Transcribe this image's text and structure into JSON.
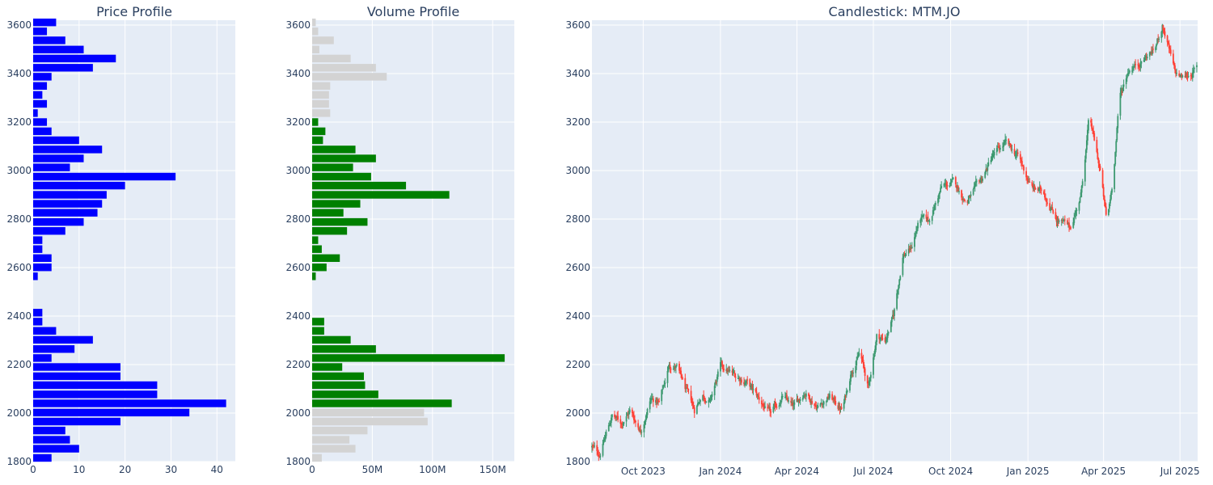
{
  "chart_data": [
    {
      "type": "bar",
      "orientation": "horizontal",
      "title": "Price Profile",
      "xlabel": "",
      "ylabel": "",
      "xlim": [
        0,
        44
      ],
      "ylim": [
        1800,
        3620
      ],
      "x_ticks": [
        "0",
        "10",
        "20",
        "30",
        "40"
      ],
      "y_ticks": [
        "1800",
        "2000",
        "2200",
        "2400",
        "2600",
        "2800",
        "3000",
        "3200",
        "3400",
        "3600"
      ],
      "bin_width": 37.4,
      "bar_color": "#0000ff",
      "bins": [
        1815,
        1853,
        1890,
        1928,
        1965,
        2002,
        2040,
        2077,
        2115,
        2152,
        2190,
        2227,
        2264,
        2302,
        2339,
        2377,
        2414,
        2452,
        2489,
        2526,
        2564,
        2601,
        2639,
        2676,
        2713,
        2751,
        2788,
        2826,
        2863,
        2900,
        2938,
        2975,
        3013,
        3050,
        3087,
        3125,
        3162,
        3200,
        3237,
        3275,
        3312,
        3349,
        3387,
        3424,
        3462,
        3499,
        3537,
        3574,
        3611
      ],
      "values": [
        4,
        10,
        8,
        7,
        19,
        34,
        42,
        27,
        27,
        19,
        19,
        4,
        9,
        13,
        5,
        2,
        2,
        0,
        0,
        0,
        1,
        4,
        4,
        2,
        2,
        7,
        11,
        14,
        15,
        16,
        20,
        31,
        8,
        11,
        15,
        10,
        4,
        3,
        1,
        3,
        2,
        3,
        4,
        13,
        18,
        11,
        7,
        3,
        5
      ]
    },
    {
      "type": "bar",
      "orientation": "horizontal",
      "title": "Volume Profile",
      "xlabel": "",
      "ylabel": "",
      "xlim": [
        0,
        168000000
      ],
      "ylim": [
        1800,
        3620
      ],
      "x_ticks": [
        "0",
        "50M",
        "100M",
        "150M"
      ],
      "y_ticks": [
        "1800",
        "2000",
        "2200",
        "2400",
        "2600",
        "2800",
        "3000",
        "3200",
        "3400",
        "3600"
      ],
      "bin_width": 37.4,
      "value_area_color": "#008000",
      "outside_color": "#d3d3d3",
      "bins": [
        1815,
        1853,
        1890,
        1928,
        1965,
        2002,
        2040,
        2077,
        2115,
        2152,
        2190,
        2227,
        2264,
        2302,
        2339,
        2377,
        2414,
        2452,
        2489,
        2526,
        2564,
        2601,
        2639,
        2676,
        2713,
        2751,
        2788,
        2826,
        2863,
        2900,
        2938,
        2975,
        3013,
        3050,
        3087,
        3125,
        3162,
        3200,
        3237,
        3275,
        3312,
        3349,
        3387,
        3424,
        3462,
        3499,
        3537,
        3574,
        3611
      ],
      "values": [
        8000000,
        36000000,
        31000000,
        46000000,
        96000000,
        93000000,
        116000000,
        55000000,
        44000000,
        43000000,
        25000000,
        160000000,
        53000000,
        32000000,
        10000000,
        10000000,
        0,
        0,
        0,
        0,
        3000000,
        12000000,
        23000000,
        8000000,
        5000000,
        29000000,
        46000000,
        26000000,
        40000000,
        114000000,
        78000000,
        49000000,
        34000000,
        53000000,
        36000000,
        9000000,
        11000000,
        5000000,
        15000000,
        14000000,
        14000000,
        15000000,
        62000000,
        53000000,
        32000000,
        6000000,
        18000000,
        5000000,
        3000000
      ],
      "in_value_area": [
        false,
        false,
        false,
        false,
        false,
        false,
        true,
        true,
        true,
        true,
        true,
        true,
        true,
        true,
        true,
        true,
        false,
        false,
        false,
        false,
        true,
        true,
        true,
        true,
        true,
        true,
        true,
        true,
        true,
        true,
        true,
        true,
        true,
        true,
        true,
        true,
        true,
        true,
        false,
        false,
        false,
        false,
        false,
        false,
        false,
        false,
        false,
        false,
        false
      ]
    },
    {
      "type": "candlestick",
      "title": "Candlestick: MTM.JO",
      "xlabel": "",
      "ylabel": "",
      "xlim": [
        "2023-08-01",
        "2025-07-22"
      ],
      "ylim": [
        1800,
        3620
      ],
      "x_ticks": [
        {
          "date": "2023-10-01",
          "label": "Oct 2023"
        },
        {
          "date": "2024-01-01",
          "label": "Jan 2024"
        },
        {
          "date": "2024-04-01",
          "label": "Apr 2024"
        },
        {
          "date": "2024-07-01",
          "label": "Jul 2024"
        },
        {
          "date": "2024-10-01",
          "label": "Oct 2024"
        },
        {
          "date": "2025-01-01",
          "label": "Jan 2025"
        },
        {
          "date": "2025-04-01",
          "label": "Apr 2025"
        },
        {
          "date": "2025-07-01",
          "label": "Jul 2025"
        }
      ],
      "y_ticks": [
        "1800",
        "2000",
        "2200",
        "2400",
        "2600",
        "2800",
        "3000",
        "3200",
        "3400",
        "3600"
      ],
      "increasing_color": "#3d9970",
      "decreasing_color": "#ff4136",
      "start_date": "2023-08-01",
      "end_date": "2025-07-21",
      "anchors": [
        [
          "2023-08-01",
          1860
        ],
        [
          "2023-08-10",
          1830
        ],
        [
          "2023-08-25",
          1990
        ],
        [
          "2023-09-05",
          1960
        ],
        [
          "2023-09-15",
          2010
        ],
        [
          "2023-09-28",
          1930
        ],
        [
          "2023-10-10",
          2060
        ],
        [
          "2023-10-20",
          2040
        ],
        [
          "2023-11-01",
          2200
        ],
        [
          "2023-11-10",
          2190
        ],
        [
          "2023-11-20",
          2100
        ],
        [
          "2023-12-01",
          2010
        ],
        [
          "2023-12-10",
          2080
        ],
        [
          "2023-12-20",
          2050
        ],
        [
          "2024-01-01",
          2190
        ],
        [
          "2024-01-15",
          2160
        ],
        [
          "2024-02-01",
          2130
        ],
        [
          "2024-02-15",
          2060
        ],
        [
          "2024-03-01",
          1990
        ],
        [
          "2024-03-15",
          2070
        ],
        [
          "2024-03-28",
          2020
        ],
        [
          "2024-04-10",
          2090
        ],
        [
          "2024-04-25",
          2030
        ],
        [
          "2024-05-10",
          2070
        ],
        [
          "2024-05-25",
          2010
        ],
        [
          "2024-06-05",
          2180
        ],
        [
          "2024-06-15",
          2250
        ],
        [
          "2024-06-25",
          2100
        ],
        [
          "2024-07-05",
          2320
        ],
        [
          "2024-07-15",
          2300
        ],
        [
          "2024-07-25",
          2400
        ],
        [
          "2024-08-05",
          2650
        ],
        [
          "2024-08-15",
          2680
        ],
        [
          "2024-08-25",
          2800
        ],
        [
          "2024-09-05",
          2790
        ],
        [
          "2024-09-20",
          2930
        ],
        [
          "2024-10-05",
          2950
        ],
        [
          "2024-10-20",
          2870
        ],
        [
          "2024-11-05",
          2950
        ],
        [
          "2024-11-20",
          3060
        ],
        [
          "2024-12-05",
          3110
        ],
        [
          "2024-12-20",
          3060
        ],
        [
          "2025-01-05",
          2930
        ],
        [
          "2025-01-20",
          2910
        ],
        [
          "2025-02-05",
          2800
        ],
        [
          "2025-02-20",
          2760
        ],
        [
          "2025-03-05",
          2900
        ],
        [
          "2025-03-15",
          3220
        ],
        [
          "2025-03-28",
          3000
        ],
        [
          "2025-04-05",
          2780
        ],
        [
          "2025-04-12",
          2960
        ],
        [
          "2025-04-20",
          3300
        ],
        [
          "2025-05-01",
          3420
        ],
        [
          "2025-05-15",
          3450
        ],
        [
          "2025-06-01",
          3500
        ],
        [
          "2025-06-10",
          3600
        ],
        [
          "2025-06-15",
          3540
        ],
        [
          "2025-06-25",
          3400
        ],
        [
          "2025-07-05",
          3380
        ],
        [
          "2025-07-21",
          3420
        ]
      ]
    }
  ]
}
